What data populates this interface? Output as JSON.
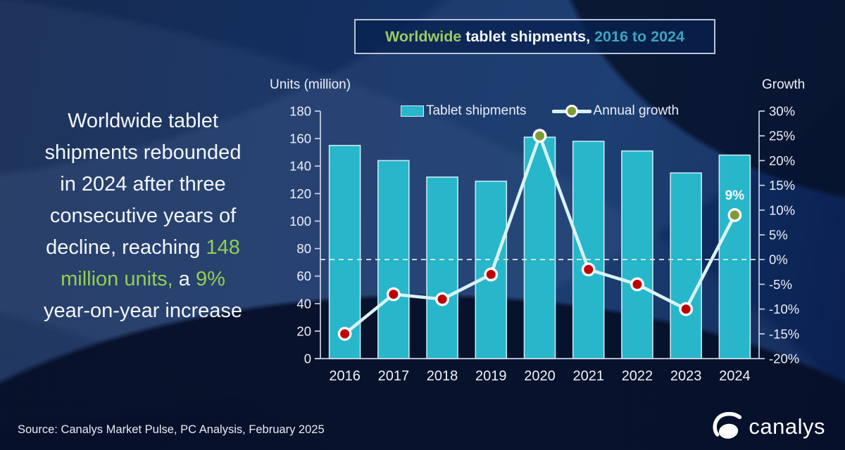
{
  "theme": {
    "bar_color": "#27b6ca",
    "bar_border": "#c4ecf2",
    "line_color": "#d9f3f8",
    "marker_red": "#c00000",
    "marker_green": "#7e9b33",
    "axis_color": "#c9d4e6",
    "text_color": "#edf1f8",
    "green_text": "#92cf52",
    "teal_text": "#3ba4bf"
  },
  "title": {
    "part1": "Worldwide",
    "part2": " tablet shipments, ",
    "part3": "2016 to 2024"
  },
  "summary": {
    "lines": [
      [
        {
          "text": "Worldwide tablet",
          "color": "white"
        }
      ],
      [
        {
          "text": "shipments rebounded",
          "color": "white"
        }
      ],
      [
        {
          "text": "in 2024 after three",
          "color": "white"
        }
      ],
      [
        {
          "text": "consecutive years of",
          "color": "white"
        }
      ],
      [
        {
          "text": "decline, reaching ",
          "color": "white"
        },
        {
          "text": "148",
          "color": "green"
        }
      ],
      [
        {
          "text": "million units,",
          "color": "green"
        },
        {
          "text": " a ",
          "color": "white"
        },
        {
          "text": "9%",
          "color": "green"
        }
      ],
      [
        {
          "text": "year-on-year increase",
          "color": "white"
        }
      ]
    ]
  },
  "chart_data": {
    "type": "bar",
    "subtype": "bar+line combo, dual axis",
    "categories": [
      "2016",
      "2017",
      "2018",
      "2019",
      "2020",
      "2021",
      "2022",
      "2023",
      "2024"
    ],
    "series": [
      {
        "name": "Tablet shipments",
        "type": "bar",
        "axis": "left",
        "unit": "million units",
        "values": [
          155,
          144,
          132,
          129,
          161,
          158,
          151,
          135,
          148
        ]
      },
      {
        "name": "Annual growth",
        "type": "line",
        "axis": "right",
        "unit": "percent",
        "values": [
          -15,
          -7,
          -8,
          -3,
          25,
          -2,
          -5,
          -10,
          9
        ],
        "marker_colors": [
          "red",
          "red",
          "red",
          "red",
          "green",
          "red",
          "red",
          "red",
          "green"
        ]
      }
    ],
    "left_axis": {
      "label": "Units (million)",
      "min": 0,
      "max": 180,
      "tick_labels": [
        "180",
        "160",
        "140",
        "120",
        "100",
        "80",
        "60",
        "40",
        "20",
        "0"
      ]
    },
    "right_axis": {
      "label": "Growth",
      "min": -20,
      "max": 30,
      "tick_labels": [
        "30%",
        "25%",
        "20%",
        "15%",
        "10%",
        "5%",
        "0%",
        "-5%",
        "-10%",
        "-15%",
        "-20%"
      ]
    },
    "zero_line": {
      "style": "dashed",
      "at": 0
    },
    "annotation": {
      "text": "9%",
      "category": "2024"
    },
    "legend": [
      "Tablet shipments",
      "Annual growth"
    ],
    "legend_position": "top-center",
    "grid": false
  },
  "footer": {
    "source": "Source: Canalys Market Pulse, PC Analysis, February 2025",
    "brand": "canalys"
  }
}
